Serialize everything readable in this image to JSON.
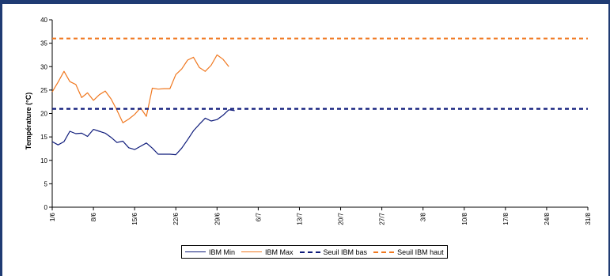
{
  "chart_data": {
    "type": "line",
    "ylabel": "Température (°C)",
    "xlabel": "",
    "ylim": [
      0,
      40
    ],
    "yticks": [
      "0",
      "5",
      "10",
      "15",
      "20",
      "25",
      "30",
      "35",
      "40"
    ],
    "x_tick_labels": [
      "1/6",
      "8/6",
      "15/6",
      "22/6",
      "29/6",
      "6/7",
      "13/7",
      "20/7",
      "27/7",
      "3/8",
      "10/8",
      "17/8",
      "24/8",
      "31/8"
    ],
    "x_day_range": [
      0,
      91
    ],
    "grid": false,
    "legend_position": "bottom",
    "series": [
      {
        "name": "IBM Min",
        "color": "#0d1a7a",
        "style": "solid",
        "x": [
          0,
          1,
          2,
          3,
          4,
          5,
          6,
          7,
          8,
          9,
          10,
          11,
          12,
          13,
          14,
          15,
          16,
          17,
          18,
          19,
          20,
          21,
          22,
          23,
          24,
          25,
          26,
          27,
          28,
          29,
          30,
          31
        ],
        "values": [
          14.0,
          13.3,
          14.0,
          16.2,
          15.7,
          15.8,
          15.1,
          16.6,
          16.2,
          15.8,
          14.9,
          13.8,
          14.1,
          12.7,
          12.3,
          13.0,
          13.7,
          12.6,
          11.3,
          11.3,
          11.3,
          11.2,
          12.6,
          14.4,
          16.3,
          17.7,
          19.0,
          18.4,
          18.7,
          19.6,
          20.8,
          20.6
        ]
      },
      {
        "name": "IBM Max",
        "color": "#f07820",
        "style": "solid",
        "x": [
          0,
          1,
          2,
          3,
          4,
          5,
          6,
          7,
          8,
          9,
          10,
          11,
          12,
          13,
          14,
          15,
          16,
          17,
          18,
          19,
          20,
          21,
          22,
          23,
          24,
          25,
          26,
          27,
          28,
          29,
          30,
          31
        ],
        "values": [
          24.6,
          26.7,
          29.0,
          26.8,
          26.2,
          23.4,
          24.4,
          22.8,
          24.0,
          24.8,
          23.1,
          20.7,
          18.0,
          18.8,
          19.8,
          21.2,
          19.4,
          25.4,
          25.2,
          25.3,
          25.3,
          28.3,
          29.5,
          31.4,
          32.0,
          29.8,
          29.0,
          30.3,
          32.5,
          31.6,
          30.0,
          null
        ]
      },
      {
        "name": "Seuil IBM bas",
        "color": "#0d1a7a",
        "style": "dashed",
        "x": [
          0,
          91
        ],
        "values": [
          21,
          21
        ]
      },
      {
        "name": "Seuil IBM haut",
        "color": "#f07820",
        "style": "dashed",
        "x": [
          0,
          91
        ],
        "values": [
          36,
          36
        ]
      }
    ]
  }
}
